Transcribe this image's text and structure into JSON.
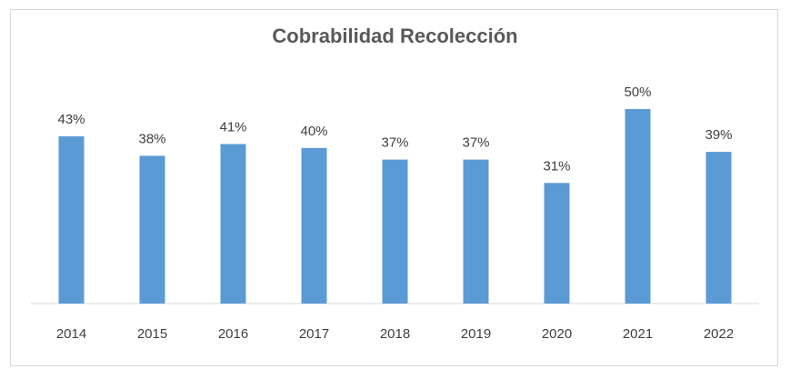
{
  "chart_data": {
    "type": "bar",
    "title": "Cobrabilidad Recolección",
    "categories": [
      "2014",
      "2015",
      "2016",
      "2017",
      "2018",
      "2019",
      "2020",
      "2021",
      "2022"
    ],
    "values": [
      43,
      38,
      41,
      40,
      37,
      37,
      31,
      50,
      39
    ],
    "value_labels": [
      "43%",
      "38%",
      "41%",
      "40%",
      "37%",
      "37%",
      "31%",
      "50%",
      "39%"
    ],
    "unit": "%",
    "xlabel": "",
    "ylabel": "",
    "ylim": [
      0,
      50
    ],
    "grid": false,
    "legend": "none",
    "bar_color": "#5b9bd5"
  }
}
